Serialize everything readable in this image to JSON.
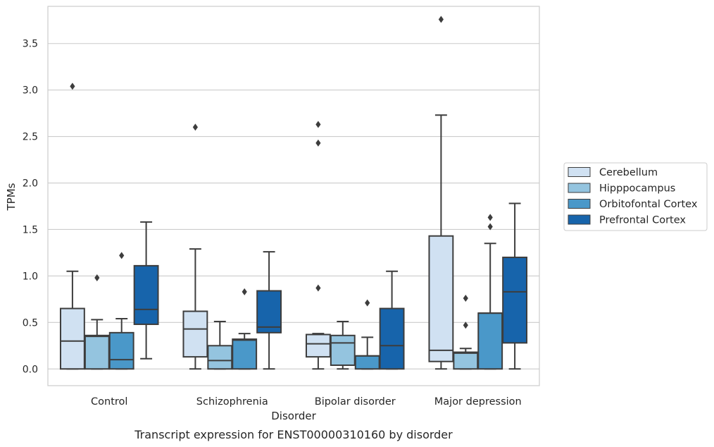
{
  "chart_data": {
    "type": "box",
    "title": "",
    "caption": "Transcript expression for ENST00000310160 by disorder",
    "xlabel": "Disorder",
    "ylabel": "TPMs",
    "categories": [
      "Control",
      "Schizophrenia",
      "Bipolar disorder",
      "Major depression"
    ],
    "ylim": [
      -0.18,
      3.9
    ],
    "yticks": [
      "0.0",
      "0.5",
      "1.0",
      "1.5",
      "2.0",
      "2.5",
      "3.0",
      "3.5"
    ],
    "grid": "horizontal",
    "legend_position": "right",
    "series": [
      {
        "name": "Cerebellum",
        "color": "#d0e1f2",
        "boxes": [
          {
            "whisker_low": 0.0,
            "q1": 0.0,
            "median": 0.3,
            "q3": 0.65,
            "whisker_high": 1.05,
            "outliers": [
              3.04
            ]
          },
          {
            "whisker_low": 0.0,
            "q1": 0.13,
            "median": 0.43,
            "q3": 0.62,
            "whisker_high": 1.29,
            "outliers": [
              2.6
            ]
          },
          {
            "whisker_low": 0.0,
            "q1": 0.13,
            "median": 0.27,
            "q3": 0.37,
            "whisker_high": 0.38,
            "outliers": [
              0.87,
              2.43,
              2.63
            ]
          },
          {
            "whisker_low": 0.0,
            "q1": 0.08,
            "median": 0.2,
            "q3": 1.43,
            "whisker_high": 2.73,
            "outliers": [
              3.76
            ]
          }
        ]
      },
      {
        "name": "Hipppocampus",
        "color": "#94c4df",
        "boxes": [
          {
            "whisker_low": 0.0,
            "q1": 0.0,
            "median": 0.35,
            "q3": 0.36,
            "whisker_high": 0.53,
            "outliers": [
              0.98
            ]
          },
          {
            "whisker_low": 0.0,
            "q1": 0.0,
            "median": 0.09,
            "q3": 0.25,
            "whisker_high": 0.51,
            "outliers": []
          },
          {
            "whisker_low": 0.0,
            "q1": 0.04,
            "median": 0.28,
            "q3": 0.36,
            "whisker_high": 0.51,
            "outliers": []
          },
          {
            "whisker_low": 0.0,
            "q1": 0.0,
            "median": 0.17,
            "q3": 0.18,
            "whisker_high": 0.22,
            "outliers": [
              0.47,
              0.76
            ]
          }
        ]
      },
      {
        "name": "Orbitofontal Cortex",
        "color": "#4a98c9",
        "boxes": [
          {
            "whisker_low": 0.0,
            "q1": 0.0,
            "median": 0.1,
            "q3": 0.39,
            "whisker_high": 0.54,
            "outliers": [
              1.22
            ]
          },
          {
            "whisker_low": 0.0,
            "q1": 0.0,
            "median": 0.31,
            "q3": 0.32,
            "whisker_high": 0.38,
            "outliers": [
              0.83
            ]
          },
          {
            "whisker_low": 0.0,
            "q1": 0.0,
            "median": 0.14,
            "q3": 0.14,
            "whisker_high": 0.34,
            "outliers": [
              0.71
            ]
          },
          {
            "whisker_low": 0.0,
            "q1": 0.0,
            "median": 0.6,
            "q3": 0.6,
            "whisker_high": 1.35,
            "outliers": [
              1.53,
              1.63
            ]
          }
        ]
      },
      {
        "name": "Prefrontal Cortex",
        "color": "#1764ab",
        "boxes": [
          {
            "whisker_low": 0.11,
            "q1": 0.48,
            "median": 0.64,
            "q3": 1.11,
            "whisker_high": 1.58,
            "outliers": []
          },
          {
            "whisker_low": 0.0,
            "q1": 0.39,
            "median": 0.45,
            "q3": 0.84,
            "whisker_high": 1.26,
            "outliers": []
          },
          {
            "whisker_low": 0.0,
            "q1": 0.0,
            "median": 0.25,
            "q3": 0.65,
            "whisker_high": 1.05,
            "outliers": []
          },
          {
            "whisker_low": 0.0,
            "q1": 0.28,
            "median": 0.83,
            "q3": 1.2,
            "whisker_high": 1.78,
            "outliers": []
          }
        ]
      }
    ]
  }
}
